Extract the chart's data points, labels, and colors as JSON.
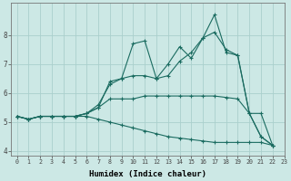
{
  "xlabel": "Humidex (Indice chaleur)",
  "bg_color": "#cce8e5",
  "grid_color": "#aacfcc",
  "line_color": "#1a6b60",
  "x": [
    0,
    1,
    2,
    3,
    4,
    5,
    6,
    7,
    8,
    9,
    10,
    11,
    12,
    13,
    14,
    15,
    16,
    17,
    18,
    19,
    20,
    21,
    22,
    23
  ],
  "lines": [
    [
      5.2,
      5.1,
      5.2,
      5.2,
      5.2,
      5.2,
      5.3,
      5.5,
      6.4,
      6.5,
      7.7,
      7.8,
      6.5,
      7.0,
      7.6,
      7.2,
      7.9,
      8.7,
      7.4,
      7.3,
      5.3,
      4.5,
      4.2,
      null
    ],
    [
      5.2,
      5.1,
      5.2,
      5.2,
      5.2,
      5.2,
      5.3,
      5.6,
      6.3,
      6.5,
      6.6,
      6.6,
      6.5,
      6.6,
      7.1,
      7.4,
      7.9,
      8.1,
      7.5,
      7.3,
      5.3,
      4.5,
      4.2,
      null
    ],
    [
      5.2,
      5.1,
      5.2,
      5.2,
      5.2,
      5.2,
      5.3,
      5.5,
      5.8,
      5.8,
      5.8,
      5.9,
      5.9,
      5.9,
      5.9,
      5.9,
      5.9,
      5.9,
      5.85,
      5.8,
      5.3,
      5.3,
      4.2,
      null
    ],
    [
      5.2,
      5.1,
      5.2,
      5.2,
      5.2,
      5.2,
      5.2,
      5.1,
      5.0,
      4.9,
      4.8,
      4.7,
      4.6,
      4.5,
      4.45,
      4.4,
      4.35,
      4.3,
      4.3,
      4.3,
      4.3,
      4.3,
      4.2,
      null
    ]
  ],
  "ylim": [
    3.85,
    9.1
  ],
  "xlim": [
    -0.5,
    23.0
  ],
  "yticks": [
    4,
    5,
    6,
    7,
    8
  ],
  "xticks": [
    0,
    1,
    2,
    3,
    4,
    5,
    6,
    7,
    8,
    9,
    10,
    11,
    12,
    13,
    14,
    15,
    16,
    17,
    18,
    19,
    20,
    21,
    22,
    23
  ],
  "figw": 3.2,
  "figh": 2.0,
  "dpi": 100
}
